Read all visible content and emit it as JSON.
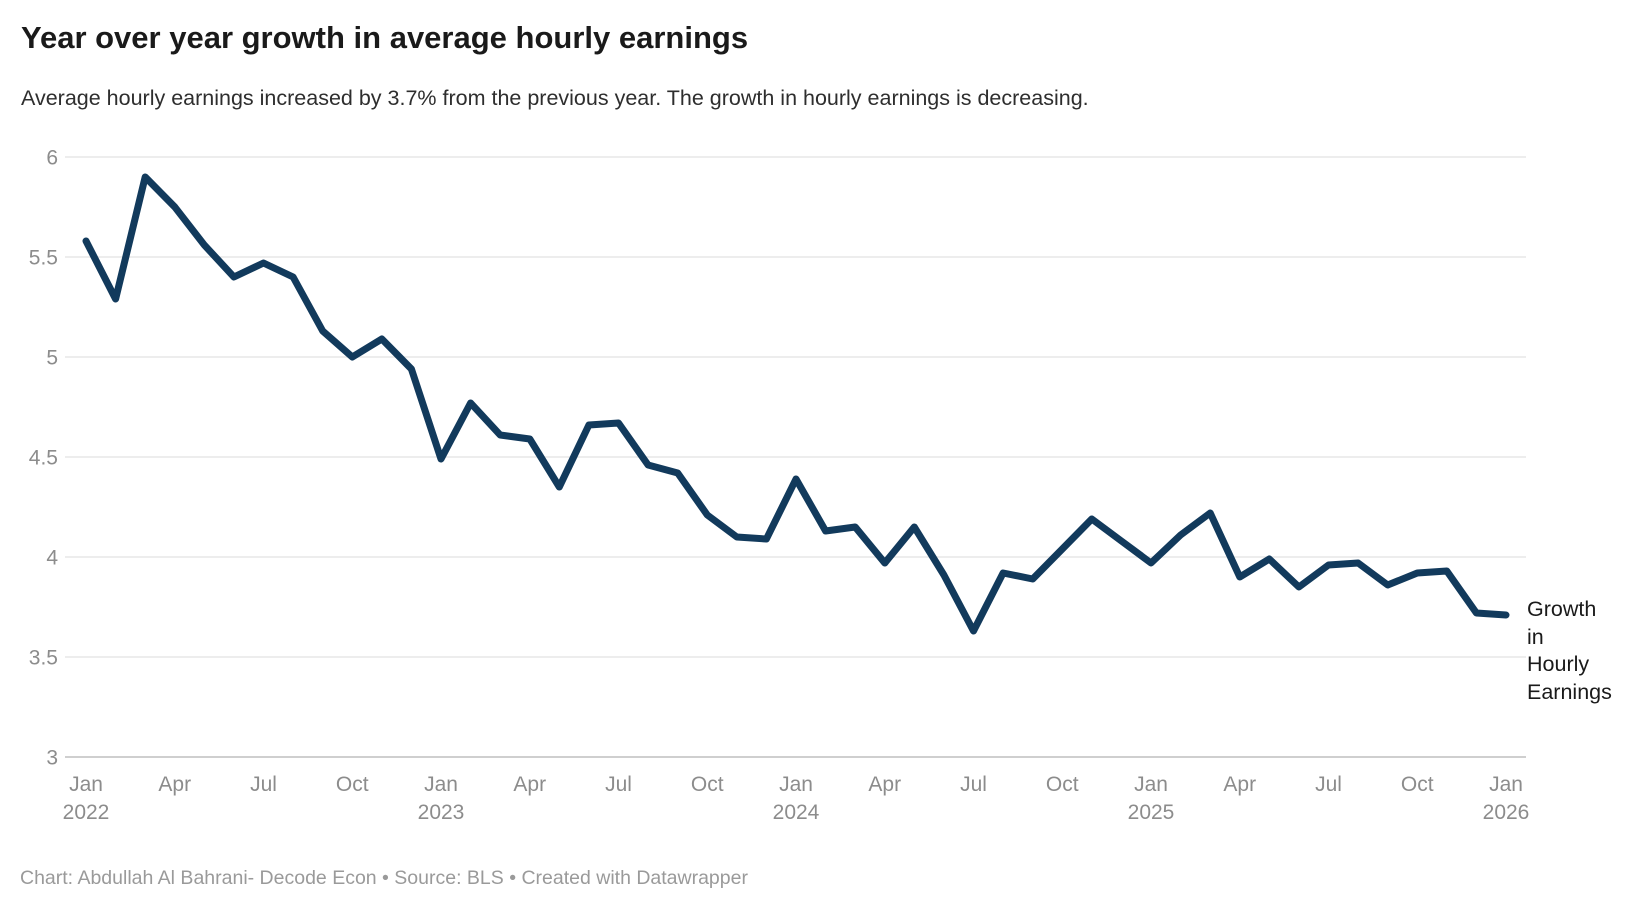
{
  "header": {
    "title": "Year over year growth in average hourly earnings",
    "subtitle": "Average hourly earnings increased by 3.7% from the previous year. The growth in hourly earnings is decreasing."
  },
  "annotation": {
    "series_label": "Growth in Hourly Earnings"
  },
  "footer": {
    "byline": "Chart: Abdullah Al Bahrani- Decode Econ • Source: BLS • Created with Datawrapper"
  },
  "colors": {
    "line": "#123A5C",
    "grid": "#E7E7E7",
    "baseline": "#CFCFCF",
    "axis_text": "#8C8C8C",
    "title_text": "#1A1A1A",
    "subtitle_text": "#2E2E2E",
    "annotation_text": "#1A1A1A",
    "footer_text": "#9A9A9A",
    "background": "#FFFFFF"
  },
  "chart_data": {
    "type": "line",
    "title": "Year over year growth in average hourly earnings",
    "xlabel": "",
    "ylabel": "",
    "ylim": [
      3,
      6
    ],
    "grid": "horizontal",
    "legend_position": "right-of-line-end",
    "y_ticks": [
      "6",
      "5.5",
      "5",
      "4.5",
      "4",
      "3.5",
      "3"
    ],
    "x_ticks": [
      {
        "month": "Jan",
        "year": "2022",
        "index": 0
      },
      {
        "month": "Apr",
        "index": 3
      },
      {
        "month": "Jul",
        "index": 6
      },
      {
        "month": "Oct",
        "index": 9
      },
      {
        "month": "Jan",
        "year": "2023",
        "index": 12
      },
      {
        "month": "Apr",
        "index": 15
      },
      {
        "month": "Jul",
        "index": 18
      },
      {
        "month": "Oct",
        "index": 21
      },
      {
        "month": "Jan",
        "year": "2024",
        "index": 24
      },
      {
        "month": "Apr",
        "index": 27
      },
      {
        "month": "Jul",
        "index": 30
      },
      {
        "month": "Oct",
        "index": 33
      },
      {
        "month": "Jan",
        "year": "2025",
        "index": 36
      },
      {
        "month": "Apr",
        "index": 39
      },
      {
        "month": "Jul",
        "index": 42
      },
      {
        "month": "Oct",
        "index": 45
      },
      {
        "month": "Jan",
        "year": "2026",
        "index": 48
      }
    ],
    "x": [
      "Jan 2022",
      "Feb 2022",
      "Mar 2022",
      "Apr 2022",
      "May 2022",
      "Jun 2022",
      "Jul 2022",
      "Aug 2022",
      "Sep 2022",
      "Oct 2022",
      "Nov 2022",
      "Dec 2022",
      "Jan 2023",
      "Feb 2023",
      "Mar 2023",
      "Apr 2023",
      "May 2023",
      "Jun 2023",
      "Jul 2023",
      "Aug 2023",
      "Sep 2023",
      "Oct 2023",
      "Nov 2023",
      "Dec 2023",
      "Jan 2024",
      "Feb 2024",
      "Mar 2024",
      "Apr 2024",
      "May 2024",
      "Jun 2024",
      "Jul 2024",
      "Aug 2024",
      "Sep 2024",
      "Oct 2024",
      "Nov 2024",
      "Dec 2024",
      "Jan 2025",
      "Feb 2025",
      "Mar 2025",
      "Apr 2025",
      "May 2025",
      "Jun 2025",
      "Jul 2025",
      "Aug 2025",
      "Sep 2025",
      "Oct 2025",
      "Nov 2025",
      "Dec 2025",
      "Jan 2026"
    ],
    "series": [
      {
        "name": "Growth in Hourly Earnings",
        "values": [
          5.58,
          5.29,
          5.9,
          5.75,
          5.56,
          5.4,
          5.47,
          5.4,
          5.13,
          5.0,
          5.09,
          4.94,
          4.49,
          4.77,
          4.61,
          4.59,
          4.35,
          4.66,
          4.67,
          4.46,
          4.42,
          4.21,
          4.1,
          4.09,
          4.39,
          4.13,
          4.15,
          3.97,
          4.15,
          3.91,
          3.63,
          3.92,
          3.89,
          4.04,
          4.19,
          4.08,
          3.97,
          4.11,
          4.22,
          3.9,
          3.99,
          3.85,
          3.96,
          3.97,
          3.86,
          3.92,
          3.93,
          3.72,
          3.71
        ]
      }
    ]
  }
}
